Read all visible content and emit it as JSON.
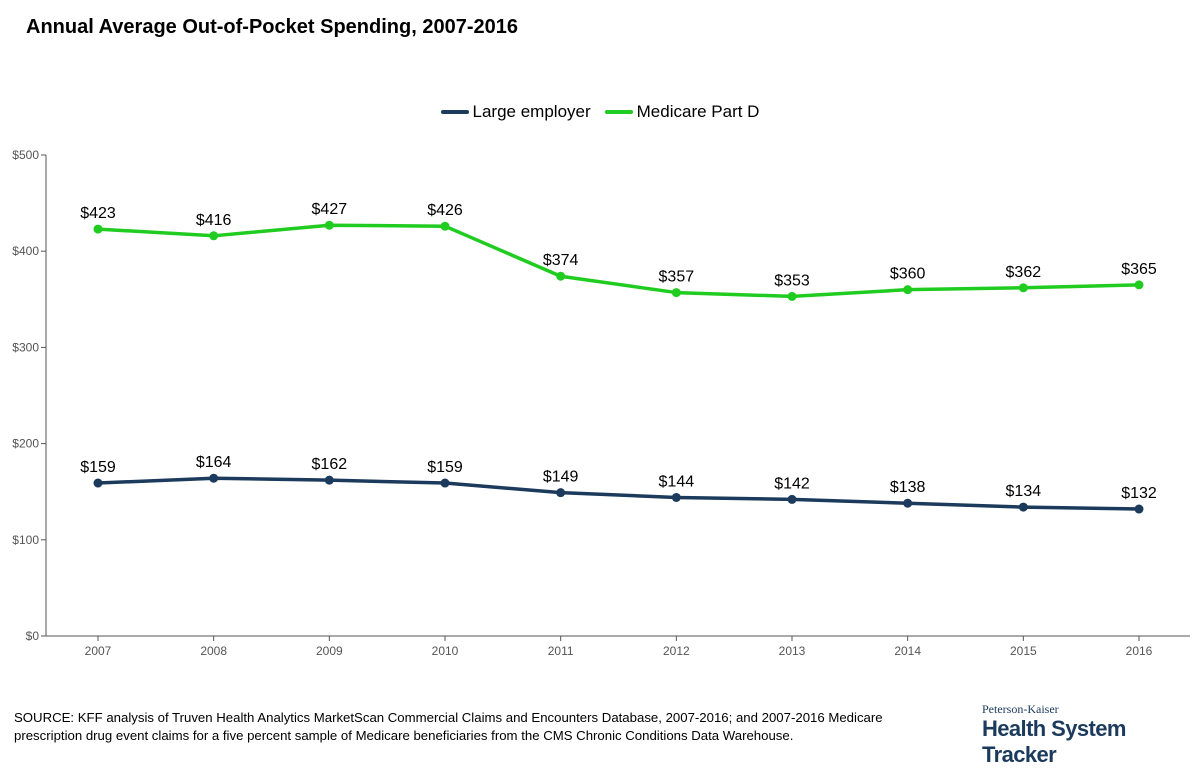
{
  "colors": {
    "large_employer": "#1b3a5c",
    "medicare_part_d": "#1fcc1f",
    "axis": "#555555",
    "tick_text": "#555555"
  },
  "chart_data": {
    "type": "line",
    "title": "Annual Average Out-of-Pocket Spending, 2007-2016",
    "xlabel": "",
    "ylabel": "",
    "categories": [
      "2007",
      "2008",
      "2009",
      "2010",
      "2011",
      "2012",
      "2013",
      "2014",
      "2015",
      "2016"
    ],
    "ylim": [
      0,
      500
    ],
    "yticks": [
      0,
      100,
      200,
      300,
      400,
      500
    ],
    "ytick_labels": [
      "$0",
      "$100",
      "$200",
      "$300",
      "$400",
      "$500"
    ],
    "legend_position": "top-center",
    "grid": false,
    "series": [
      {
        "name": "Large employer",
        "color_key": "large_employer",
        "values": [
          159,
          164,
          162,
          159,
          149,
          144,
          142,
          138,
          134,
          132
        ],
        "labels": [
          "$159",
          "$164",
          "$162",
          "$159",
          "$149",
          "$144",
          "$142",
          "$138",
          "$134",
          "$132"
        ]
      },
      {
        "name": "Medicare Part D",
        "color_key": "medicare_part_d",
        "values": [
          423,
          416,
          427,
          426,
          374,
          357,
          353,
          360,
          362,
          365
        ],
        "labels": [
          "$423",
          "$416",
          "$427",
          "$426",
          "$374",
          "$357",
          "$353",
          "$360",
          "$362",
          "$365"
        ]
      }
    ]
  },
  "source_text": "SOURCE: KFF analysis of Truven Health Analytics MarketScan Commercial Claims and Encounters Database, 2007-2016; and 2007-2016 Medicare prescription drug event claims for a five percent sample of Medicare beneficiaries from the CMS Chronic Conditions Data Warehouse.",
  "logo": {
    "top": "Peterson-Kaiser",
    "main": "Health System Tracker"
  }
}
